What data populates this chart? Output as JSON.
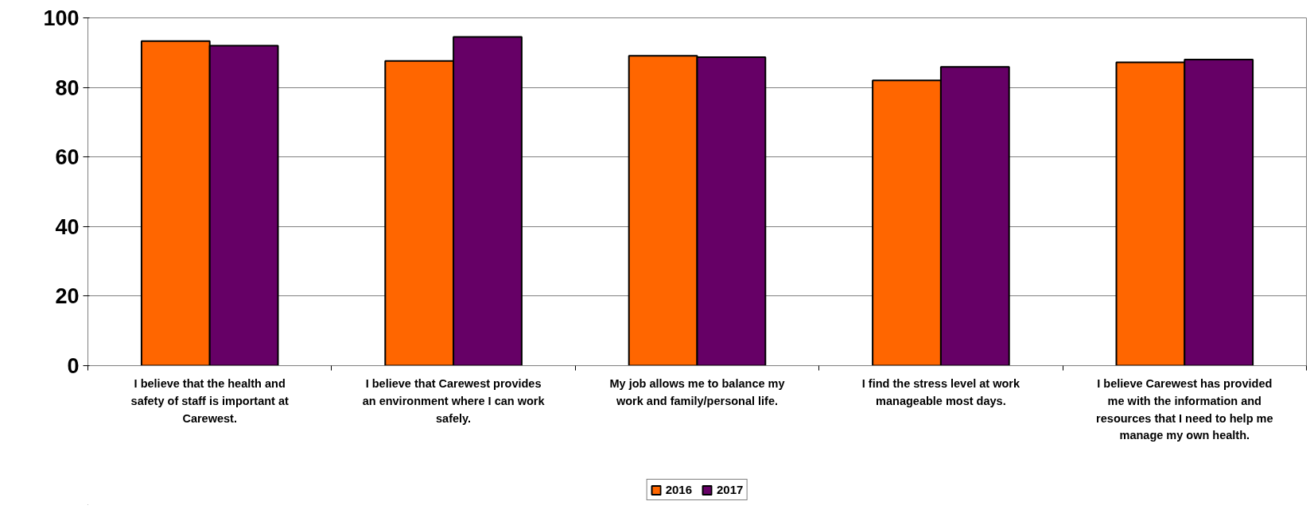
{
  "chart_data": {
    "type": "bar",
    "categories": [
      "I believe that the health and safety of staff is important at Carewest.",
      "I believe that Carewest provides an environment where I can work safely.",
      "My job allows me to balance my work and family/personal life.",
      "I find the stress level at work manageable most days.",
      "I believe Carewest has provided me with the information and resources that I need to help me manage my own health."
    ],
    "series": [
      {
        "name": "2016",
        "color": "#ff6600",
        "values": [
          93.3,
          87.6,
          89.1,
          82.0,
          87.2
        ]
      },
      {
        "name": "2017",
        "color": "#660066",
        "values": [
          92.0,
          94.5,
          88.7,
          85.9,
          88.0
        ]
      }
    ],
    "ylim": [
      0,
      100
    ],
    "yticks": [
      0,
      20,
      40,
      60,
      80,
      100
    ],
    "grid": "y",
    "legend": "bottom"
  }
}
